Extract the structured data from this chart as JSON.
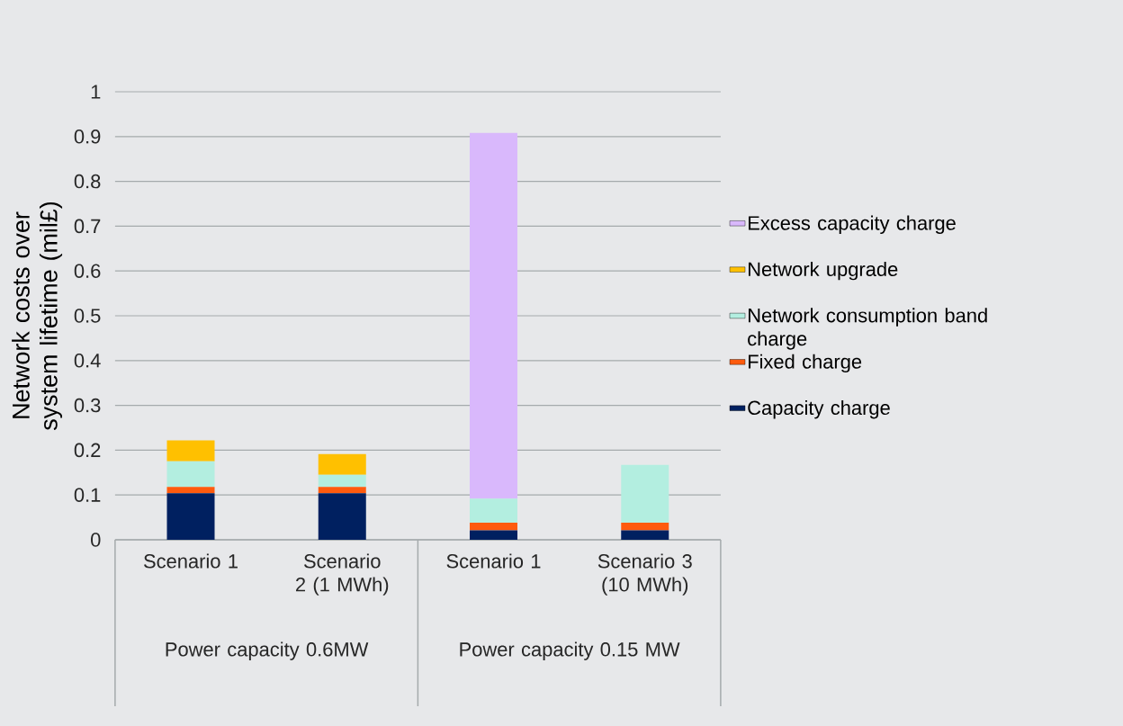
{
  "chart_data": {
    "type": "bar",
    "stacked": true,
    "ylabel": "Network costs over system lifetime (mil£)",
    "categories": [
      "Scenario 1",
      "Scenario 2 (1 MWh)",
      "Scenario 1",
      "Scenario 3 (10 MWh)"
    ],
    "series": [
      {
        "name": "Capacity charge",
        "color": "#002060",
        "values": [
          0.104,
          0.104,
          0.021,
          0.021
        ]
      },
      {
        "name": "Fixed charge",
        "color": "#fe5b0e",
        "values": [
          0.014,
          0.014,
          0.017,
          0.017
        ]
      },
      {
        "name": "Network consumption band charge",
        "color": "#b3eee0",
        "values": [
          0.057,
          0.027,
          0.054,
          0.129
        ]
      },
      {
        "name": "Network upgrade",
        "color": "#ffc000",
        "values": [
          0.047,
          0.046,
          null,
          null
        ]
      },
      {
        "name": "Excess capacity charge",
        "color": "#d9b8fc",
        "values": [
          null,
          null,
          0.816,
          null
        ]
      }
    ],
    "annotations": [
      "Power capacity 0.6MW",
      "Power capacity 0.15 MW"
    ],
    "ylim": [
      0,
      1
    ],
    "yticks": [
      0,
      0.1,
      0.2,
      0.3,
      0.4,
      0.5,
      0.6,
      0.7,
      0.8,
      0.9,
      1
    ],
    "grid": "y",
    "legend": "right"
  }
}
